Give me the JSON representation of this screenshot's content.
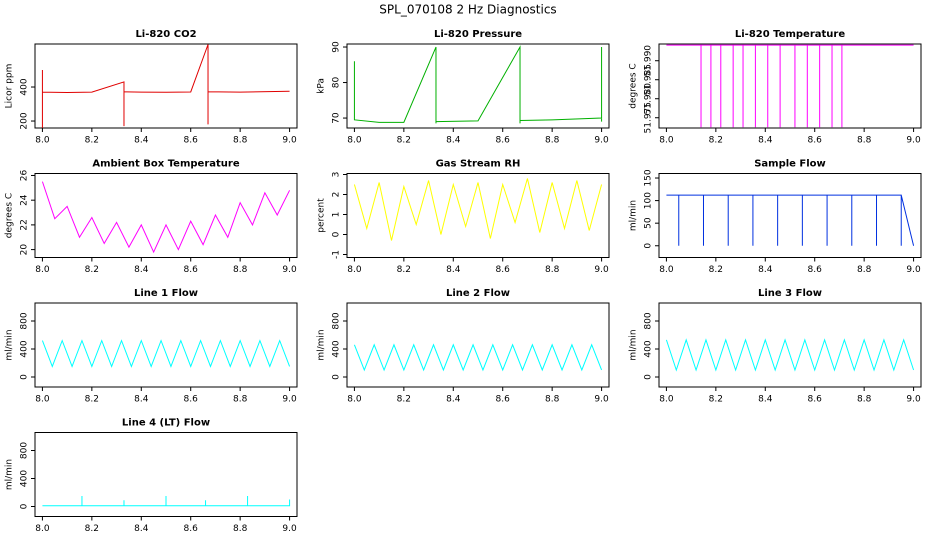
{
  "title": "SPL_070108  2 Hz Diagnostics",
  "chart_data": [
    {
      "type": "line",
      "title": "Li-820 CO2",
      "ylabel": "Licor ppm",
      "color": "#e00000",
      "x": [
        8.0,
        8.0,
        8.0,
        8.1,
        8.2,
        8.33,
        8.33,
        8.33,
        8.4,
        8.5,
        8.6,
        8.67,
        8.67,
        8.67,
        8.8,
        9.0
      ],
      "values": [
        500,
        160,
        370,
        368,
        370,
        430,
        170,
        372,
        370,
        369,
        371,
        650,
        180,
        372,
        370,
        375
      ],
      "xlim": [
        7.97,
        9.03
      ],
      "ylim": [
        159,
        653
      ],
      "xticks": [
        {
          "value": 8,
          "label": "8.0"
        },
        {
          "value": 8.2,
          "label": "8.2"
        },
        {
          "value": 8.4,
          "label": "8.4"
        },
        {
          "value": 8.6,
          "label": "8.6"
        },
        {
          "value": 8.8,
          "label": "8.8"
        },
        {
          "value": 9,
          "label": "9.0"
        }
      ],
      "yticks": [
        200,
        400
      ]
    },
    {
      "type": "line",
      "title": "Li-820 Pressure",
      "ylabel": "kPa",
      "color": "#00b000",
      "x": [
        8.0,
        8.0,
        8.0,
        8.1,
        8.2,
        8.33,
        8.33,
        8.33,
        8.5,
        8.67,
        8.67,
        8.67,
        8.8,
        9.0,
        9.0,
        9.0
      ],
      "values": [
        86,
        78,
        69.5,
        68.8,
        68.8,
        90,
        68.5,
        69,
        69.2,
        90,
        68.5,
        69.3,
        69.5,
        70,
        90,
        69
      ],
      "xlim": [
        7.97,
        9.03
      ],
      "ylim": [
        67.2,
        90.85
      ],
      "xticks": [
        {
          "value": 8,
          "label": "8.0"
        },
        {
          "value": 8.2,
          "label": "8.2"
        },
        {
          "value": 8.4,
          "label": "8.4"
        },
        {
          "value": 8.6,
          "label": "8.6"
        },
        {
          "value": 8.8,
          "label": "8.8"
        },
        {
          "value": 9,
          "label": "9.0"
        }
      ],
      "yticks": [
        70,
        80,
        90
      ]
    },
    {
      "type": "line",
      "title": "Li-820 Temperature",
      "ylabel": "degrees C",
      "color": "#ff00ff",
      "x": [
        8.0,
        8.13,
        8.14,
        8.14,
        8.14,
        8.18,
        8.18,
        8.18,
        8.22,
        8.22,
        8.22,
        8.27,
        8.27,
        8.27,
        8.31,
        8.31,
        8.31,
        8.36,
        8.36,
        8.36,
        8.41,
        8.41,
        8.41,
        8.46,
        8.46,
        8.46,
        8.52,
        8.52,
        8.52,
        8.57,
        8.57,
        8.57,
        8.62,
        8.62,
        8.62,
        8.67,
        8.67,
        8.67,
        8.71,
        8.71,
        8.71,
        9.0
      ],
      "values": [
        51.9941,
        51.9941,
        51.9941,
        51.9725,
        51.9941,
        51.9941,
        51.9725,
        51.9941,
        51.9941,
        51.9725,
        51.9941,
        51.9941,
        51.9725,
        51.9941,
        51.9941,
        51.9725,
        51.9941,
        51.9941,
        51.9725,
        51.9941,
        51.9941,
        51.9725,
        51.9941,
        51.9941,
        51.9725,
        51.9941,
        51.9941,
        51.9725,
        51.9941,
        51.9941,
        51.9725,
        51.9941,
        51.9941,
        51.9725,
        51.9941,
        51.9941,
        51.9725,
        51.9941,
        51.9941,
        51.9725,
        51.9941,
        51.9941
      ],
      "xlim": [
        7.97,
        9.03
      ],
      "ylim": [
        51.9723,
        51.9944
      ],
      "xticks": [
        {
          "value": 8,
          "label": "8.0"
        },
        {
          "value": 8.2,
          "label": "8.2"
        },
        {
          "value": 8.4,
          "label": "8.4"
        },
        {
          "value": 8.6,
          "label": "8.6"
        },
        {
          "value": 8.8,
          "label": "8.8"
        },
        {
          "value": 9,
          "label": "9.0"
        }
      ],
      "yticks": [
        51.975,
        {
          "value": 51.98,
          "label": "51.980"
        },
        51.985,
        {
          "value": 51.99,
          "label": "51.990"
        }
      ]
    },
    {
      "type": "line",
      "title": "Ambient Box Temperature",
      "ylabel": "degrees C",
      "color": "#ff00ff",
      "x": [
        8.0,
        8.05,
        8.1,
        8.15,
        8.2,
        8.25,
        8.3,
        8.35,
        8.4,
        8.45,
        8.5,
        8.55,
        8.6,
        8.65,
        8.7,
        8.75,
        8.8,
        8.85,
        8.9,
        8.95,
        9.0
      ],
      "values": [
        25.5,
        22.5,
        23.5,
        21.0,
        22.6,
        20.5,
        22.2,
        20.2,
        22.0,
        19.8,
        22.0,
        20.0,
        22.3,
        20.4,
        22.8,
        21.0,
        23.8,
        22.0,
        24.6,
        22.8,
        24.8
      ],
      "xlim": [
        7.97,
        9.03
      ],
      "ylim": [
        19.36,
        26.16
      ],
      "xticks": [
        {
          "value": 8,
          "label": "8.0"
        },
        {
          "value": 8.2,
          "label": "8.2"
        },
        {
          "value": 8.4,
          "label": "8.4"
        },
        {
          "value": 8.6,
          "label": "8.6"
        },
        {
          "value": 8.8,
          "label": "8.8"
        },
        {
          "value": 9,
          "label": "9.0"
        }
      ],
      "yticks": [
        20,
        22,
        24,
        26
      ]
    },
    {
      "type": "line",
      "title": "Gas Stream RH",
      "ylabel": "percent",
      "color": "#ffff00",
      "x": [
        8.0,
        8.05,
        8.1,
        8.15,
        8.2,
        8.25,
        8.3,
        8.35,
        8.4,
        8.45,
        8.5,
        8.55,
        8.6,
        8.65,
        8.7,
        8.75,
        8.8,
        8.85,
        8.9,
        8.95,
        9.0
      ],
      "values": [
        2.5,
        0.3,
        2.6,
        -0.3,
        2.4,
        0.5,
        2.7,
        0.0,
        2.5,
        0.4,
        2.6,
        -0.2,
        2.5,
        0.6,
        2.8,
        0.1,
        2.6,
        0.3,
        2.7,
        0.2,
        2.5
      ],
      "xlim": [
        7.97,
        9.03
      ],
      "ylim": [
        -1.15,
        3.05
      ],
      "xticks": [
        {
          "value": 8,
          "label": "8.0"
        },
        {
          "value": 8.2,
          "label": "8.2"
        },
        {
          "value": 8.4,
          "label": "8.4"
        },
        {
          "value": 8.6,
          "label": "8.6"
        },
        {
          "value": 8.8,
          "label": "8.8"
        },
        {
          "value": 9,
          "label": "9.0"
        }
      ],
      "yticks": [
        -1,
        0,
        1,
        2,
        3
      ]
    },
    {
      "type": "line",
      "title": "Sample Flow",
      "ylabel": "ml/min",
      "color": "#0030e0",
      "x": [
        8.0,
        8.05,
        8.05,
        8.05,
        8.15,
        8.15,
        8.15,
        8.25,
        8.25,
        8.25,
        8.35,
        8.35,
        8.35,
        8.45,
        8.45,
        8.45,
        8.55,
        8.55,
        8.55,
        8.65,
        8.65,
        8.65,
        8.75,
        8.75,
        8.75,
        8.85,
        8.85,
        8.85,
        8.95,
        8.95,
        8.95,
        9.0
      ],
      "values": [
        112,
        112,
        0,
        112,
        112,
        0,
        112,
        112,
        0,
        112,
        112,
        0,
        112,
        112,
        0,
        112,
        112,
        0,
        112,
        112,
        0,
        112,
        112,
        0,
        112,
        112,
        0,
        112,
        112,
        0,
        112,
        0
      ],
      "xlim": [
        7.97,
        9.03
      ],
      "ylim": [
        -26,
        160
      ],
      "xticks": [
        {
          "value": 8,
          "label": "8.0"
        },
        {
          "value": 8.2,
          "label": "8.2"
        },
        {
          "value": 8.4,
          "label": "8.4"
        },
        {
          "value": 8.6,
          "label": "8.6"
        },
        {
          "value": 8.8,
          "label": "8.8"
        },
        {
          "value": 9,
          "label": "9.0"
        }
      ],
      "yticks": [
        0,
        50,
        100,
        150
      ]
    },
    {
      "type": "line",
      "title": "Line 1 Flow",
      "ylabel": "ml/min",
      "color": "#00ffff",
      "x": [
        8.0,
        8.04,
        8.08,
        8.12,
        8.16,
        8.2,
        8.24,
        8.28,
        8.32,
        8.36,
        8.4,
        8.44,
        8.48,
        8.52,
        8.56,
        8.6,
        8.64,
        8.68,
        8.72,
        8.76,
        8.8,
        8.84,
        8.88,
        8.92,
        8.96,
        9.0
      ],
      "values": [
        520,
        150,
        520,
        150,
        520,
        150,
        520,
        150,
        520,
        150,
        520,
        150,
        520,
        150,
        520,
        150,
        520,
        150,
        520,
        150,
        520,
        150,
        520,
        150,
        520,
        150
      ],
      "xlim": [
        7.97,
        9.03
      ],
      "ylim": [
        -143,
        1057
      ],
      "xticks": [
        {
          "value": 8,
          "label": "8.0"
        },
        {
          "value": 8.2,
          "label": "8.2"
        },
        {
          "value": 8.4,
          "label": "8.4"
        },
        {
          "value": 8.6,
          "label": "8.6"
        },
        {
          "value": 8.8,
          "label": "8.8"
        },
        {
          "value": 9,
          "label": "9.0"
        }
      ],
      "yticks": [
        0,
        400,
        800
      ]
    },
    {
      "type": "line",
      "title": "Line 2 Flow",
      "ylabel": "ml/min",
      "color": "#00ffff",
      "x": [
        8.0,
        8.04,
        8.08,
        8.12,
        8.16,
        8.2,
        8.24,
        8.28,
        8.32,
        8.36,
        8.4,
        8.44,
        8.48,
        8.52,
        8.56,
        8.6,
        8.64,
        8.68,
        8.72,
        8.76,
        8.8,
        8.84,
        8.88,
        8.92,
        8.96,
        9.0
      ],
      "values": [
        460,
        100,
        460,
        100,
        460,
        100,
        460,
        100,
        460,
        100,
        460,
        100,
        460,
        100,
        460,
        100,
        460,
        100,
        460,
        100,
        460,
        100,
        460,
        100,
        460,
        100
      ],
      "xlim": [
        7.97,
        9.03
      ],
      "ylim": [
        -143,
        1057
      ],
      "xticks": [
        {
          "value": 8,
          "label": "8.0"
        },
        {
          "value": 8.2,
          "label": "8.2"
        },
        {
          "value": 8.4,
          "label": "8.4"
        },
        {
          "value": 8.6,
          "label": "8.6"
        },
        {
          "value": 8.8,
          "label": "8.8"
        },
        {
          "value": 9,
          "label": "9.0"
        }
      ],
      "yticks": [
        0,
        400,
        800
      ]
    },
    {
      "type": "line",
      "title": "Line 3 Flow",
      "ylabel": "ml/min",
      "color": "#00ffff",
      "x": [
        8.0,
        8.04,
        8.08,
        8.12,
        8.16,
        8.2,
        8.24,
        8.28,
        8.32,
        8.36,
        8.4,
        8.44,
        8.48,
        8.52,
        8.56,
        8.6,
        8.64,
        8.68,
        8.72,
        8.76,
        8.8,
        8.84,
        8.88,
        8.92,
        8.96,
        9.0
      ],
      "values": [
        530,
        100,
        530,
        100,
        530,
        100,
        530,
        100,
        530,
        100,
        530,
        100,
        530,
        100,
        530,
        100,
        530,
        100,
        530,
        100,
        530,
        100,
        530,
        100,
        530,
        100
      ],
      "xlim": [
        7.97,
        9.03
      ],
      "ylim": [
        -143,
        1057
      ],
      "xticks": [
        {
          "value": 8,
          "label": "8.0"
        },
        {
          "value": 8.2,
          "label": "8.2"
        },
        {
          "value": 8.4,
          "label": "8.4"
        },
        {
          "value": 8.6,
          "label": "8.6"
        },
        {
          "value": 8.8,
          "label": "8.8"
        },
        {
          "value": 9,
          "label": "9.0"
        }
      ],
      "yticks": [
        0,
        400,
        800
      ]
    },
    {
      "type": "line",
      "title": "Line 4 (LT) Flow",
      "ylabel": "ml/min",
      "color": "#00ffff",
      "x": [
        8.0,
        8.16,
        8.16,
        8.16,
        8.33,
        8.33,
        8.33,
        8.5,
        8.5,
        8.5,
        8.66,
        8.66,
        8.66,
        8.83,
        8.83,
        8.83,
        9.0,
        9.0
      ],
      "values": [
        10,
        10,
        150,
        10,
        10,
        90,
        10,
        10,
        150,
        10,
        10,
        90,
        10,
        10,
        150,
        10,
        10,
        100
      ],
      "xlim": [
        7.97,
        9.03
      ],
      "ylim": [
        -143,
        1057
      ],
      "xticks": [
        {
          "value": 8,
          "label": "8.0"
        },
        {
          "value": 8.2,
          "label": "8.2"
        },
        {
          "value": 8.4,
          "label": "8.4"
        },
        {
          "value": 8.6,
          "label": "8.6"
        },
        {
          "value": 8.8,
          "label": "8.8"
        },
        {
          "value": 9,
          "label": "9.0"
        }
      ],
      "yticks": [
        0,
        400,
        800
      ]
    }
  ]
}
